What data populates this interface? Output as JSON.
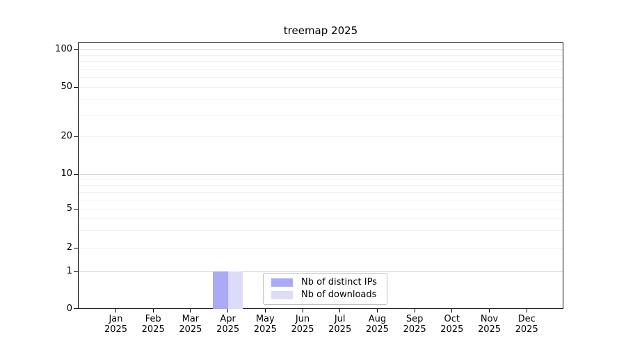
{
  "chart_data": {
    "type": "bar",
    "title": "treemap 2025",
    "x_axis": {
      "months": [
        "Jan",
        "Feb",
        "Mar",
        "Apr",
        "May",
        "Jun",
        "Jul",
        "Aug",
        "Sep",
        "Oct",
        "Nov",
        "Dec"
      ],
      "year": "2025"
    },
    "y_axis": {
      "scale": "symlog",
      "ticks": [
        0,
        1,
        2,
        5,
        10,
        20,
        50,
        100
      ],
      "major_gridlines": [
        1,
        10,
        100
      ],
      "minor_gridlines": [
        2,
        3,
        4,
        5,
        6,
        7,
        8,
        9,
        20,
        30,
        40,
        50,
        60,
        70,
        80,
        90
      ],
      "ylim": [
        0,
        112
      ],
      "grid": true
    },
    "series": [
      {
        "name": "Nb of distinct IPs",
        "color": "#aaaaf5",
        "values": [
          0,
          0,
          0,
          1,
          0,
          0,
          0,
          0,
          0,
          0,
          0,
          0
        ]
      },
      {
        "name": "Nb of downloads",
        "color": "#dcdcf8",
        "values": [
          0,
          0,
          0,
          1,
          0,
          0,
          0,
          0,
          0,
          0,
          0,
          0
        ]
      }
    ],
    "legend": {
      "position": "lower center"
    },
    "colors": {
      "spine": "#000000",
      "major_grid": "#d5d5d5",
      "minor_grid": "#efefef",
      "background": "#ffffff"
    }
  }
}
